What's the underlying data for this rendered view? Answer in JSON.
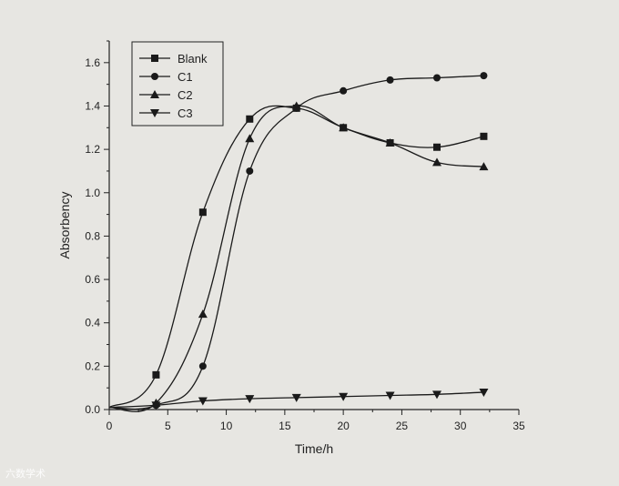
{
  "chart_data": {
    "type": "line",
    "xlabel": "Time/h",
    "ylabel": "Absorbency",
    "xlim": [
      0,
      35
    ],
    "ylim": [
      0,
      1.7
    ],
    "x_ticks": [
      0,
      5,
      10,
      15,
      20,
      25,
      30,
      35
    ],
    "y_ticks": [
      0.0,
      0.2,
      0.4,
      0.6,
      0.8,
      1.0,
      1.2,
      1.4,
      1.6
    ],
    "grid": false,
    "legend_position": "top-left",
    "series": [
      {
        "name": "Blank",
        "marker": "square",
        "color": "#1a1a1a",
        "x": [
          0,
          4,
          8,
          12,
          16,
          20,
          24,
          28,
          32
        ],
        "y": [
          0.01,
          0.16,
          0.91,
          1.34,
          1.39,
          1.3,
          1.23,
          1.21,
          1.26
        ]
      },
      {
        "name": "C1",
        "marker": "circle",
        "color": "#1a1a1a",
        "x": [
          0,
          4,
          8,
          12,
          16,
          20,
          24,
          28,
          32
        ],
        "y": [
          0.01,
          0.02,
          0.2,
          1.1,
          1.39,
          1.47,
          1.52,
          1.53,
          1.54
        ]
      },
      {
        "name": "C2",
        "marker": "triangle-up",
        "color": "#1a1a1a",
        "x": [
          0,
          4,
          8,
          12,
          16,
          20,
          24,
          28,
          32
        ],
        "y": [
          0.01,
          0.03,
          0.44,
          1.25,
          1.4,
          1.3,
          1.23,
          1.14,
          1.12
        ]
      },
      {
        "name": "C3",
        "marker": "triangle-down",
        "color": "#1a1a1a",
        "x": [
          0,
          4,
          8,
          12,
          16,
          20,
          24,
          28,
          32
        ],
        "y": [
          0.01,
          0.02,
          0.04,
          0.05,
          0.055,
          0.06,
          0.065,
          0.07,
          0.08
        ]
      }
    ]
  },
  "watermark": {
    "text": "六数学术"
  }
}
